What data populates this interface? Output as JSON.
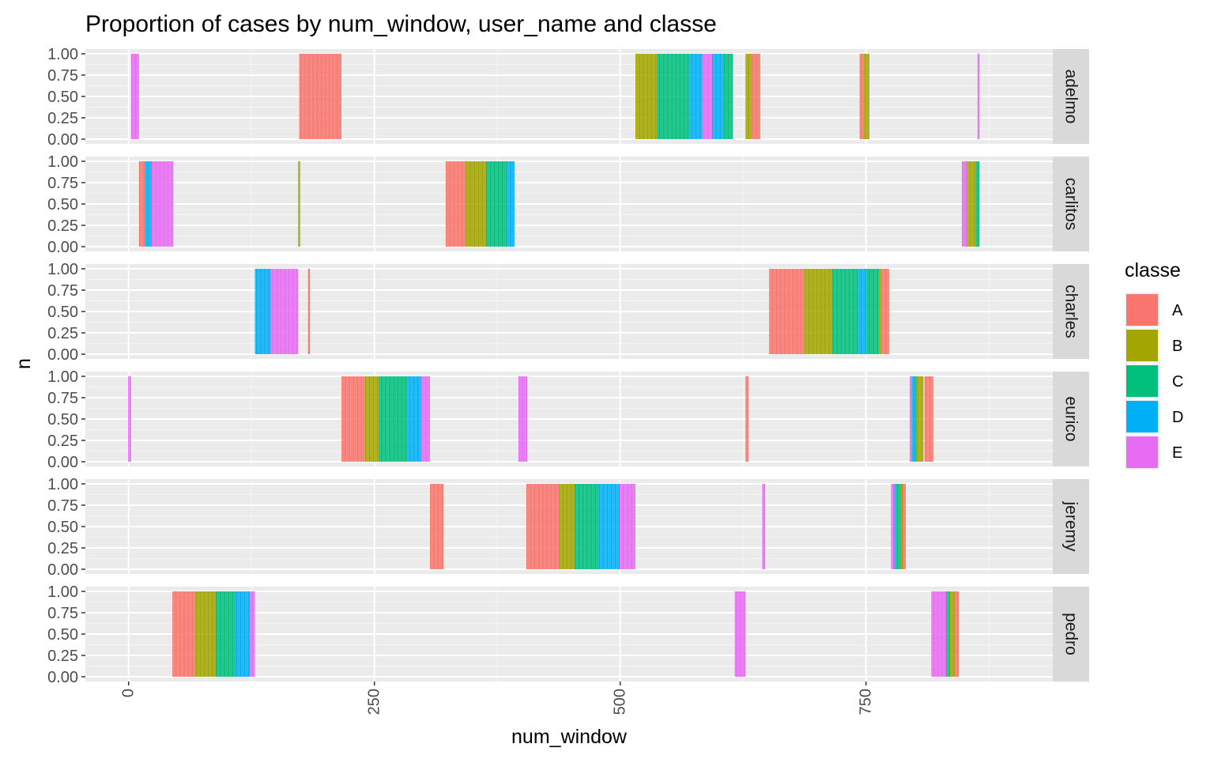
{
  "chart_data": {
    "type": "bar",
    "title": "Proportion of cases by num_window, user_name and classe",
    "xlabel": "num_window",
    "ylabel": "n",
    "xlim": [
      -44,
      940
    ],
    "ylim": [
      0,
      1
    ],
    "x_ticks": [
      0,
      250,
      500,
      750
    ],
    "x_tick_labels": [
      "0",
      "250",
      "500",
      "750"
    ],
    "y_ticks": [
      0,
      0.25,
      0.5,
      0.75,
      1.0
    ],
    "y_tick_labels": [
      "0.00",
      "0.25",
      "0.50",
      "0.75",
      "1.00"
    ],
    "stacked_position": "fill",
    "grid": true,
    "facet_by": "user_name",
    "facets": [
      "adelmo",
      "carlitos",
      "charles",
      "eurico",
      "jeremy",
      "pedro"
    ],
    "legend": {
      "title": "classe",
      "position": "right",
      "entries": [
        "A",
        "B",
        "C",
        "D",
        "E"
      ]
    },
    "colors": {
      "A": "#F8766D",
      "B": "#A3A500",
      "C": "#00BF7D",
      "D": "#00B0F6",
      "E": "#E76BF3"
    },
    "series": [
      {
        "facet": "adelmo",
        "classe": "A",
        "x_ranges": [
          [
            174,
            216
          ]
        ]
      },
      {
        "facet": "adelmo",
        "classe": "B",
        "x_ranges": [
          [
            516,
            537
          ],
          [
            628,
            633
          ],
          [
            748,
            753
          ]
        ]
      },
      {
        "facet": "adelmo",
        "classe": "C",
        "x_ranges": [
          [
            538,
            570
          ],
          [
            606,
            614
          ]
        ]
      },
      {
        "facet": "adelmo",
        "classe": "D",
        "x_ranges": [
          [
            571,
            583
          ],
          [
            594,
            605
          ]
        ]
      },
      {
        "facet": "adelmo",
        "classe": "E",
        "x_ranges": [
          [
            3,
            10
          ],
          [
            584,
            593
          ],
          [
            864,
            865
          ]
        ]
      },
      {
        "facet": "adelmo",
        "classe": "A",
        "x_ranges": [
          [
            634,
            642
          ],
          [
            744,
            747
          ]
        ]
      },
      {
        "facet": "carlitos",
        "classe": "A",
        "x_ranges": [
          [
            11,
            16
          ],
          [
            323,
            342
          ]
        ]
      },
      {
        "facet": "carlitos",
        "classe": "B",
        "x_ranges": [
          [
            173,
            174
          ],
          [
            343,
            363
          ],
          [
            853,
            861
          ]
        ]
      },
      {
        "facet": "carlitos",
        "classe": "C",
        "x_ranges": [
          [
            364,
            384
          ],
          [
            862,
            865
          ]
        ]
      },
      {
        "facet": "carlitos",
        "classe": "D",
        "x_ranges": [
          [
            17,
            23
          ],
          [
            385,
            392
          ]
        ]
      },
      {
        "facet": "carlitos",
        "classe": "E",
        "x_ranges": [
          [
            24,
            45
          ],
          [
            848,
            852
          ]
        ]
      },
      {
        "facet": "charles",
        "classe": "A",
        "x_ranges": [
          [
            183,
            184
          ],
          [
            652,
            687
          ],
          [
            766,
            773
          ]
        ]
      },
      {
        "facet": "charles",
        "classe": "B",
        "x_ranges": [
          [
            688,
            715
          ],
          [
            764,
            765
          ]
        ]
      },
      {
        "facet": "charles",
        "classe": "C",
        "x_ranges": [
          [
            716,
            741
          ],
          [
            751,
            763
          ]
        ]
      },
      {
        "facet": "charles",
        "classe": "D",
        "x_ranges": [
          [
            129,
            144
          ],
          [
            742,
            743
          ],
          [
            744,
            750
          ]
        ]
      },
      {
        "facet": "charles",
        "classe": "E",
        "x_ranges": [
          [
            145,
            172
          ]
        ]
      },
      {
        "facet": "eurico",
        "classe": "A",
        "x_ranges": [
          [
            217,
            240
          ],
          [
            628,
            630
          ],
          [
            810,
            818
          ]
        ]
      },
      {
        "facet": "eurico",
        "classe": "B",
        "x_ranges": [
          [
            241,
            254
          ],
          [
            801,
            808
          ]
        ]
      },
      {
        "facet": "eurico",
        "classe": "C",
        "x_ranges": [
          [
            255,
            283
          ],
          [
            800,
            801
          ]
        ]
      },
      {
        "facet": "eurico",
        "classe": "D",
        "x_ranges": [
          [
            284,
            297
          ],
          [
            797,
            799
          ]
        ]
      },
      {
        "facet": "eurico",
        "classe": "E",
        "x_ranges": [
          [
            0,
            2
          ],
          [
            298,
            306
          ],
          [
            397,
            405
          ],
          [
            795,
            796
          ]
        ]
      },
      {
        "facet": "jeremy",
        "classe": "A",
        "x_ranges": [
          [
            307,
            320
          ],
          [
            405,
            437
          ],
          [
            787,
            790
          ]
        ]
      },
      {
        "facet": "jeremy",
        "classe": "B",
        "x_ranges": [
          [
            438,
            453
          ],
          [
            786,
            787
          ]
        ]
      },
      {
        "facet": "jeremy",
        "classe": "C",
        "x_ranges": [
          [
            454,
            478
          ],
          [
            781,
            785
          ]
        ]
      },
      {
        "facet": "jeremy",
        "classe": "D",
        "x_ranges": [
          [
            479,
            499
          ],
          [
            779,
            780
          ]
        ]
      },
      {
        "facet": "jeremy",
        "classe": "E",
        "x_ranges": [
          [
            500,
            515
          ],
          [
            645,
            647
          ],
          [
            776,
            778
          ]
        ]
      },
      {
        "facet": "pedro",
        "classe": "A",
        "x_ranges": [
          [
            45,
            67
          ],
          [
            841,
            844
          ]
        ]
      },
      {
        "facet": "pedro",
        "classe": "B",
        "x_ranges": [
          [
            68,
            88
          ],
          [
            836,
            840
          ]
        ]
      },
      {
        "facet": "pedro",
        "classe": "C",
        "x_ranges": [
          [
            89,
            108
          ],
          [
            832,
            835
          ]
        ]
      },
      {
        "facet": "pedro",
        "classe": "D",
        "x_ranges": [
          [
            109,
            123
          ]
        ]
      },
      {
        "facet": "pedro",
        "classe": "E",
        "x_ranges": [
          [
            124,
            128
          ],
          [
            617,
            627
          ],
          [
            817,
            831
          ]
        ]
      }
    ]
  }
}
